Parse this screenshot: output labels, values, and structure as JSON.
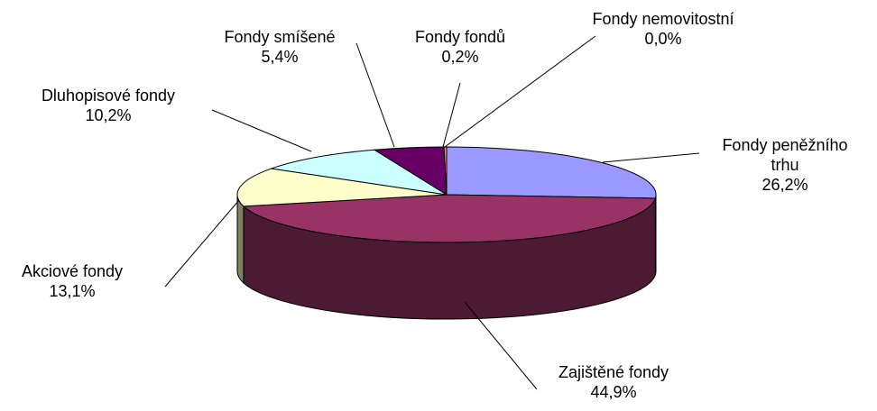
{
  "chart_data": {
    "type": "pie3d",
    "categories": [
      "Fondy peněžního trhu",
      "Zajištěné fondy",
      "Akciové fondy",
      "Dluhopisové fondy",
      "Fondy smíšené",
      "Fondy fondů",
      "Fondy nemovitostní"
    ],
    "values": [
      26.2,
      44.9,
      13.1,
      10.2,
      5.4,
      0.2,
      0.0
    ],
    "value_labels": [
      "26,2%",
      "44,9%",
      "13,1%",
      "10,2%",
      "5,4%",
      "0,2%",
      "0,0%"
    ],
    "colors": [
      "#9999ff",
      "#993366",
      "#ffffcc",
      "#ccffff",
      "#660066",
      "#ff8080",
      "#0066cc"
    ]
  }
}
